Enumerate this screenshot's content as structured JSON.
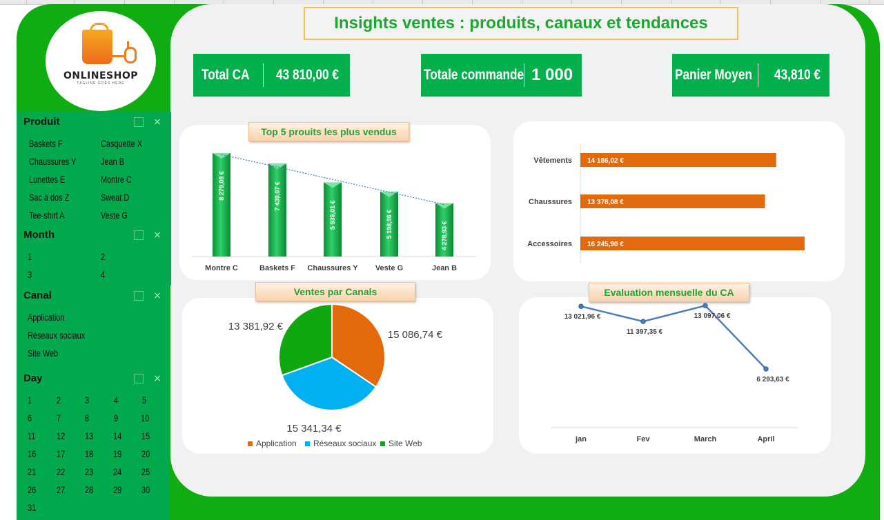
{
  "header": {
    "title": "Insights ventes : produits, canaux et tendances"
  },
  "logo": {
    "name": "ONLINESHOP",
    "tagline": "TAGLINE GOES HERE"
  },
  "kpis": [
    {
      "label": "Total CA",
      "value": "43 810,00 €"
    },
    {
      "label": "Totale commande",
      "value": "1 000"
    },
    {
      "label": "Panier Moyen",
      "value": "43,810 €"
    }
  ],
  "slicers": {
    "produit": {
      "title": "Produit",
      "items": [
        "Baskets F",
        "Casquette X",
        "Chaussures Y",
        "Jean B",
        "Lunettes E",
        "Montre C",
        "Sac à dos Z",
        "Sweat D",
        "Tee-shirt A",
        "Veste G"
      ]
    },
    "month": {
      "title": "Month",
      "items": [
        "1",
        "2",
        "3",
        "4"
      ]
    },
    "canal": {
      "title": "Canal",
      "items": [
        "Application",
        "Réseaux sociaux",
        "Site Web"
      ]
    },
    "day": {
      "title": "Day",
      "items": [
        "1",
        "2",
        "3",
        "4",
        "5",
        "6",
        "7",
        "8",
        "9",
        "10",
        "11",
        "12",
        "13",
        "14",
        "15",
        "16",
        "17",
        "18",
        "19",
        "20",
        "21",
        "22",
        "23",
        "24",
        "25",
        "26",
        "27",
        "28",
        "29",
        "30",
        "31"
      ]
    }
  },
  "chart_titles": {
    "top5": "Top 5 prouits les plus vendus",
    "canal": "Ventes par Canals",
    "monthly": "Evaluation mensuelle du CA"
  },
  "colors": {
    "green": "#03aa4d",
    "frame": "#10ad12",
    "orange": "#e4690b",
    "blue": "#00b0f0",
    "pie_green": "#10a810",
    "line": "#4a7ebb"
  },
  "chart_data": [
    {
      "type": "bar",
      "title": "Top 5 prouits les plus vendus",
      "categories": [
        "Montre C",
        "Baskets F",
        "Chaussures Y",
        "Veste G",
        "Jean B"
      ],
      "values": [
        8279.08,
        7439.07,
        5939.01,
        5198.96,
        4278.93
      ],
      "labels": [
        "8 279,08 €",
        "7 439,07 €",
        "5 939,01 €",
        "5 198,96 €",
        "4 278,93 €"
      ],
      "trendline": "linear",
      "ylim": [
        0,
        9000
      ]
    },
    {
      "type": "bar",
      "orientation": "horizontal",
      "categories": [
        "Vêtements",
        "Chaussures",
        "Accessoires"
      ],
      "values": [
        14186.02,
        13378.08,
        16245.9
      ],
      "labels": [
        "14 186,02 €",
        "13 378,08 €",
        "16 245,90 €"
      ],
      "xlim": [
        0,
        17000
      ]
    },
    {
      "type": "pie",
      "title": "Ventes par Canals",
      "categories": [
        "Application",
        "Réseaux sociaux",
        "Site Web"
      ],
      "values": [
        15086.74,
        15341.34,
        13381.92
      ],
      "labels": [
        "15 086,74 €",
        "15 341,34 €",
        "13 381,92 €"
      ],
      "legend": "bottom"
    },
    {
      "type": "line",
      "title": "Evaluation mensuelle du CA",
      "categories": [
        "jan",
        "Fev",
        "March",
        "April"
      ],
      "values": [
        13021.96,
        11397.35,
        13097.06,
        6293.63
      ],
      "labels": [
        "13 021,96 €",
        "11 397,35 €",
        "13 097,06 €",
        "6 293,63 €"
      ],
      "ylim": [
        0,
        14000
      ]
    }
  ]
}
